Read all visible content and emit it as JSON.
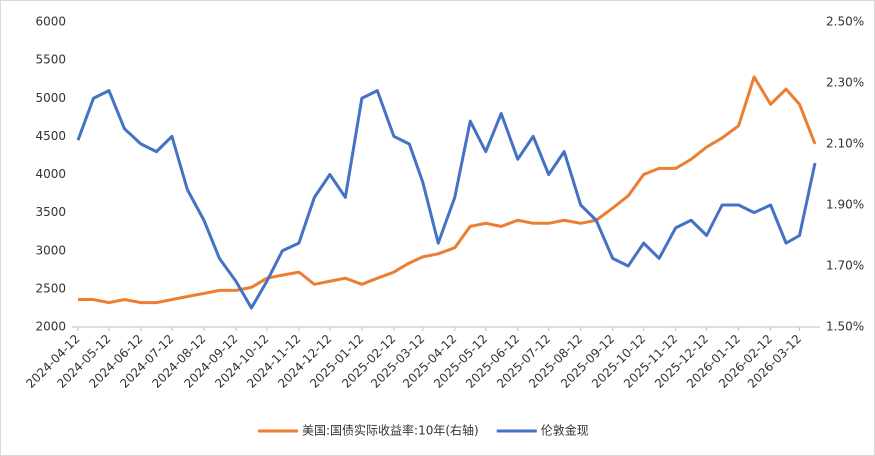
{
  "chart_data": {
    "type": "line",
    "x": [
      "2024-04-12",
      "2024-04-27",
      "2024-05-12",
      "2024-05-27",
      "2024-06-12",
      "2024-06-27",
      "2024-07-12",
      "2024-07-27",
      "2024-08-12",
      "2024-08-27",
      "2024-09-12",
      "2024-09-27",
      "2024-10-12",
      "2024-10-27",
      "2024-11-12",
      "2024-11-27",
      "2024-12-12",
      "2024-12-27",
      "2025-01-12",
      "2025-01-27",
      "2025-02-12",
      "2025-02-27",
      "2025-03-12",
      "2025-03-27",
      "2025-04-12",
      "2025-04-27",
      "2025-05-12",
      "2025-05-27",
      "2025-06-12",
      "2025-06-27",
      "2025-07-12",
      "2025-07-27",
      "2025-08-12",
      "2025-08-27",
      "2025-09-12",
      "2025-09-27",
      "2025-10-12",
      "2025-10-27",
      "2025-11-12",
      "2025-11-27",
      "2025-12-12",
      "2025-12-27",
      "2026-01-12",
      "2026-01-27",
      "2026-02-12",
      "2026-02-27",
      "2026-03-12",
      "2026-03-27"
    ],
    "series": [
      {
        "name": "美国:国债实际收益率:10年(右轴)",
        "color": "#ED7D31",
        "axis": "y2",
        "values": [
          1.59,
          1.59,
          1.58,
          1.59,
          1.58,
          1.58,
          1.59,
          1.6,
          1.61,
          1.62,
          1.62,
          1.63,
          1.66,
          1.67,
          1.68,
          1.64,
          1.65,
          1.66,
          1.64,
          1.66,
          1.68,
          1.71,
          1.73,
          1.74,
          1.76,
          1.83,
          1.84,
          1.83,
          1.85,
          1.84,
          1.84,
          1.85,
          1.84,
          1.85,
          1.89,
          1.93,
          2.0,
          2.02,
          2.02,
          2.05,
          2.09,
          2.12,
          2.16,
          2.32,
          2.23,
          2.28,
          2.23,
          2.1
        ]
      },
      {
        "name": "伦敦金现",
        "color": "#4472C4",
        "values": [
          4450,
          5000,
          5100,
          4600,
          4400,
          4300,
          4500,
          3800,
          3400,
          2900,
          2600,
          2250,
          2600,
          3000,
          3100,
          3700,
          4000,
          3700,
          5000,
          5100,
          4500,
          4400,
          3900,
          3100,
          3700,
          4700,
          4300,
          4800,
          4200,
          4500,
          4000,
          4300,
          3600,
          3400,
          2900,
          2800,
          3100,
          2900,
          3300,
          3400,
          3200,
          3600,
          3600,
          3500,
          3600,
          3100,
          3200,
          4150
        ]
      }
    ],
    "xlim": [
      "2024-04-12",
      "2026-03-27"
    ],
    "xticks": [
      "2024-04-12",
      "2024-05-12",
      "2024-06-12",
      "2024-07-12",
      "2024-08-12",
      "2024-09-12",
      "2024-10-12",
      "2024-11-12",
      "2024-12-12",
      "2025-01-12",
      "2025-02-12",
      "2025-03-12",
      "2025-04-12",
      "2025-05-12",
      "2025-06-12",
      "2025-07-12",
      "2025-08-12",
      "2025-09-12",
      "2025-10-12",
      "2025-11-12",
      "2025-12-12",
      "2026-01-12",
      "2026-02-12",
      "2026-03-12"
    ],
    "ylim": [
      2000,
      6000
    ],
    "yticks": [
      2000,
      2500,
      3000,
      3500,
      4000,
      4500,
      5000,
      5500,
      6000
    ],
    "y2lim": [
      1.5,
      2.5
    ],
    "y2ticks": [
      {
        "value": 1.5,
        "label": "1.50%"
      },
      {
        "value": 1.7,
        "label": "1.70%"
      },
      {
        "value": 1.9,
        "label": "1.90%"
      },
      {
        "value": 2.1,
        "label": "2.10%"
      },
      {
        "value": 2.3,
        "label": "2.30%"
      },
      {
        "value": 2.5,
        "label": "2.50%"
      }
    ],
    "legend": "bottom"
  }
}
